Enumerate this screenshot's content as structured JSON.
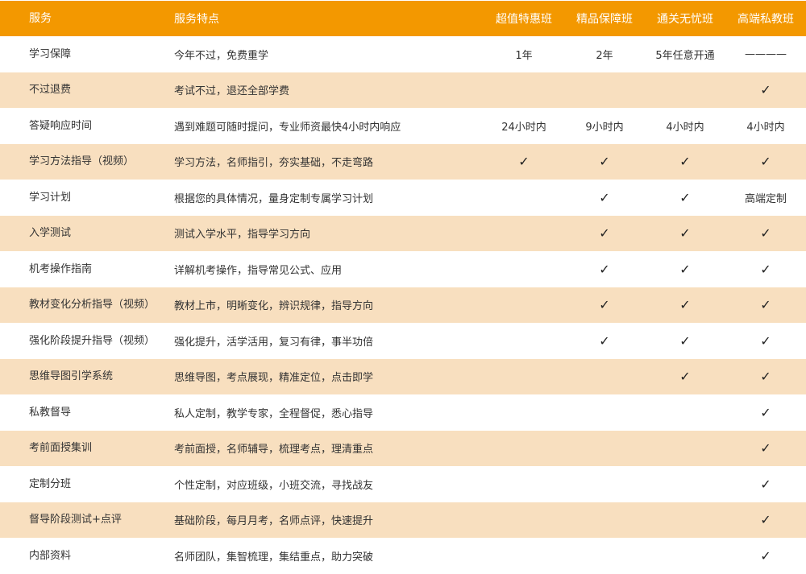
{
  "header": {
    "service": "服务",
    "features": "服务特点",
    "plans": [
      "超值特惠班",
      "精品保障班",
      "通关无忧班",
      "高端私教班"
    ]
  },
  "colors": {
    "header": "#f39800",
    "alt_row": "#f8dfbf"
  },
  "check_icon": "✓",
  "rows": [
    {
      "service": "学习保障",
      "feature": "今年不过，免费重学",
      "cells": [
        "1年",
        "2年",
        "5年任意开通",
        "————"
      ]
    },
    {
      "service": "不过退费",
      "feature": "考试不过，退还全部学费",
      "cells": [
        "",
        "",
        "",
        "✓"
      ]
    },
    {
      "service": "答疑响应时间",
      "feature": "遇到难题可随时提问，专业师资最快4小时内响应",
      "cells": [
        "24小时内",
        "9小时内",
        "4小时内",
        "4小时内"
      ]
    },
    {
      "service": "学习方法指导（视频）",
      "feature": "学习方法，名师指引，夯实基础，不走弯路",
      "cells": [
        "✓",
        "✓",
        "✓",
        "✓"
      ]
    },
    {
      "service": "学习计划",
      "feature": "根据您的具体情况，量身定制专属学习计划",
      "cells": [
        "",
        "✓",
        "✓",
        "高端定制"
      ]
    },
    {
      "service": "入学测试",
      "feature": "测试入学水平，指导学习方向",
      "cells": [
        "",
        "✓",
        "✓",
        "✓"
      ]
    },
    {
      "service": "机考操作指南",
      "feature": "详解机考操作，指导常见公式、应用",
      "cells": [
        "",
        "✓",
        "✓",
        "✓"
      ]
    },
    {
      "service": "教材变化分析指导（视频）",
      "feature": "教材上市，明晰变化，辨识规律，指导方向",
      "cells": [
        "",
        "✓",
        "✓",
        "✓"
      ]
    },
    {
      "service": "强化阶段提升指导（视频）",
      "feature": "强化提升，活学活用，复习有律，事半功倍",
      "cells": [
        "",
        "✓",
        "✓",
        "✓"
      ]
    },
    {
      "service": "思维导图引学系统",
      "feature": "思维导图，考点展现，精准定位，点击即学",
      "cells": [
        "",
        "",
        "✓",
        "✓"
      ]
    },
    {
      "service": "私教督导",
      "feature": "私人定制，教学专家，全程督促，悉心指导",
      "cells": [
        "",
        "",
        "",
        "✓"
      ]
    },
    {
      "service": "考前面授集训",
      "feature": "考前面授，名师辅导，梳理考点，理清重点",
      "cells": [
        "",
        "",
        "",
        "✓"
      ]
    },
    {
      "service": "定制分班",
      "feature": "个性定制，对应班级，小班交流，寻找战友",
      "cells": [
        "",
        "",
        "",
        "✓"
      ]
    },
    {
      "service": "督导阶段测试+点评",
      "feature": "基础阶段，每月月考，名师点评，快速提升",
      "cells": [
        "",
        "",
        "",
        "✓"
      ]
    },
    {
      "service": "内部资料",
      "feature": "名师团队，集智梳理，集结重点，助力突破",
      "cells": [
        "",
        "",
        "",
        "✓"
      ]
    }
  ]
}
